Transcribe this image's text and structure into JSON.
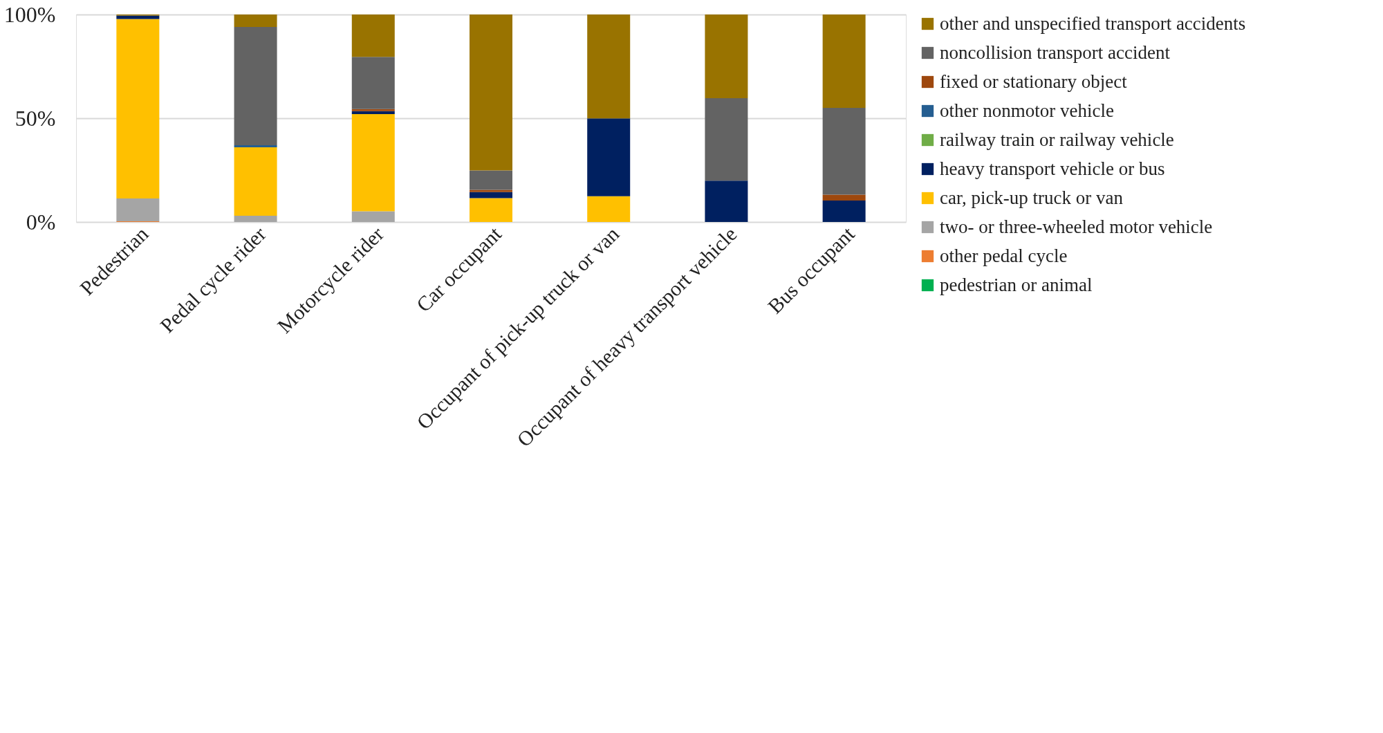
{
  "chart_data": {
    "type": "bar",
    "stacked": true,
    "categories": [
      "Pedestrian",
      "Pedal cycle rider",
      "Motorcycle rider",
      "Car occupant",
      "Occupant of pick-up truck or van",
      "Occupant of heavy transport vehicle",
      "Bus occupant"
    ],
    "ylim": [
      0,
      100
    ],
    "yticks": [
      {
        "value": 0,
        "label": "0%"
      },
      {
        "value": 50,
        "label": "50%"
      },
      {
        "value": 100,
        "label": "100%"
      }
    ],
    "grid": "y",
    "legend": "right",
    "series": [
      {
        "name": "pedestrian or animal",
        "color": "#00b050",
        "values": [
          0,
          0,
          0,
          null,
          0,
          0,
          0
        ]
      },
      {
        "name": "other pedal cycle",
        "color": "#ed7d31",
        "values": [
          0.3,
          0,
          0,
          0,
          0,
          0,
          0
        ]
      },
      {
        "name": "two- or three-wheeled motor vehicle",
        "color": "#a5a5a5",
        "values": [
          11,
          3,
          5.2,
          0,
          0,
          0,
          0
        ]
      },
      {
        "name": "car, pick-up truck or van",
        "color": "#ffc000",
        "values": [
          86.5,
          33,
          46.8,
          11.5,
          12.4,
          0,
          0
        ]
      },
      {
        "name": "heavy transport vehicle or bus",
        "color": "#002060",
        "values": [
          1.7,
          0,
          1.4,
          2.9,
          37.5,
          19.9,
          10.3
        ]
      },
      {
        "name": "railway train or railway vehicle",
        "color": "#70ad47",
        "values": [
          0,
          0,
          0,
          0,
          0,
          0,
          0
        ]
      },
      {
        "name": "other nonmotor vehicle",
        "color": "#255e91",
        "values": [
          0,
          1,
          0,
          0,
          0,
          0,
          0
        ]
      },
      {
        "name": "fixed or stationary object",
        "color": "#9e480e",
        "values": [
          0,
          0,
          1,
          1.1,
          0,
          0,
          2.9
        ]
      },
      {
        "name": "noncollision transport accident",
        "color": "#636363",
        "values": [
          0,
          57,
          25.2,
          9.3,
          0,
          39.8,
          41.8
        ]
      },
      {
        "name": "other and unspecified transport accidents",
        "color": "#997300",
        "values": [
          0.5,
          6,
          20.4,
          75.2,
          50.1,
          40.3,
          45.0
        ]
      }
    ]
  }
}
